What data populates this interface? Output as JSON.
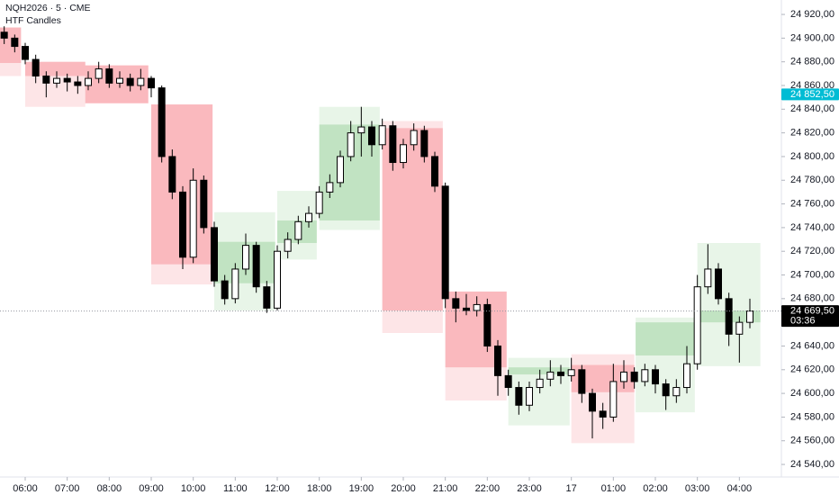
{
  "chart_data": {
    "type": "candlestick",
    "title": "NQH2026 · 5 · CME",
    "subtitle": "HTF Candles",
    "xlim": [
      -0.6,
      18.0
    ],
    "xticks": [
      {
        "value": 0,
        "label": "06:00"
      },
      {
        "value": 1,
        "label": "07:00"
      },
      {
        "value": 2,
        "label": "08:00"
      },
      {
        "value": 3,
        "label": "09:00"
      },
      {
        "value": 4,
        "label": "10:00"
      },
      {
        "value": 5,
        "label": "11:00"
      },
      {
        "value": 6,
        "label": "12:00"
      },
      {
        "value": 7,
        "label": "18:00"
      },
      {
        "value": 8,
        "label": "19:00"
      },
      {
        "value": 9,
        "label": "20:00"
      },
      {
        "value": 10,
        "label": "21:00"
      },
      {
        "value": 11,
        "label": "22:00"
      },
      {
        "value": 12,
        "label": "23:00"
      },
      {
        "value": 13,
        "label": "17"
      },
      {
        "value": 14,
        "label": "01:00"
      },
      {
        "value": 15,
        "label": "02:00"
      },
      {
        "value": 16,
        "label": "03:00"
      },
      {
        "value": 17,
        "label": "04:00"
      }
    ],
    "ylim": [
      24529.4,
      24932.2
    ],
    "yticks": [
      {
        "value": 24540,
        "label": "24 540,00"
      },
      {
        "value": 24560,
        "label": "24 560,00"
      },
      {
        "value": 24580,
        "label": "24 580,00"
      },
      {
        "value": 24600,
        "label": "24 600,00"
      },
      {
        "value": 24620,
        "label": "24 620,00"
      },
      {
        "value": 24640,
        "label": "24 640,00"
      },
      {
        "value": 24660,
        "label": "24 660,00"
      },
      {
        "value": 24680,
        "label": "24 680,00"
      },
      {
        "value": 24700,
        "label": "24 700,00"
      },
      {
        "value": 24720,
        "label": "24 720,00"
      },
      {
        "value": 24740,
        "label": "24 740,00"
      },
      {
        "value": 24760,
        "label": "24 760,00"
      },
      {
        "value": 24780,
        "label": "24 780,00"
      },
      {
        "value": 24800,
        "label": "24 800,00"
      },
      {
        "value": 24820,
        "label": "24 820,00"
      },
      {
        "value": 24840,
        "label": "24 840,00"
      },
      {
        "value": 24860,
        "label": "24 860,00"
      },
      {
        "value": 24880,
        "label": "24 880,00"
      },
      {
        "value": 24900,
        "label": "24 900,00"
      },
      {
        "value": 24920,
        "label": "24 920,00"
      }
    ],
    "up_color": "#ffffff",
    "down_color": "#000000",
    "wick_color": "#000000",
    "htf_up_color": "#4caf50",
    "htf_down_color": "#f23645",
    "htf_candles": [
      {
        "start": -0.6,
        "end": -0.1,
        "open": 24909,
        "high": 24909,
        "low": 24868,
        "close": 24879
      },
      {
        "start": 0,
        "end": 1.43,
        "open": 24880,
        "high": 24880,
        "low": 24842,
        "close": 24868
      },
      {
        "start": 1.43,
        "end": 2.93,
        "open": 24877,
        "high": 24877,
        "low": 24845,
        "close": 24845
      },
      {
        "start": 3.0,
        "end": 4.46,
        "open": 24844,
        "high": 24844,
        "low": 24692,
        "close": 24709
      },
      {
        "start": 4.5,
        "end": 5.95,
        "open": 24693,
        "high": 24753,
        "low": 24670,
        "close": 24728
      },
      {
        "start": 6.0,
        "end": 6.94,
        "open": 24727,
        "high": 24771,
        "low": 24713,
        "close": 24746
      },
      {
        "start": 7.0,
        "end": 8.44,
        "open": 24746,
        "high": 24842,
        "low": 24738,
        "close": 24827
      },
      {
        "start": 8.5,
        "end": 9.94,
        "open": 24824,
        "high": 24830,
        "low": 24651,
        "close": 24670
      },
      {
        "start": 10.0,
        "end": 11.46,
        "open": 24686,
        "high": 24686,
        "low": 24594,
        "close": 24622
      },
      {
        "start": 11.5,
        "end": 12.96,
        "open": 24616,
        "high": 24630,
        "low": 24573,
        "close": 24622
      },
      {
        "start": 13.0,
        "end": 14.5,
        "open": 24624,
        "high": 24633,
        "low": 24558,
        "close": 24601
      },
      {
        "start": 14.53,
        "end": 15.94,
        "open": 24632,
        "high": 24664,
        "low": 24584,
        "close": 24660
      },
      {
        "start": 16.0,
        "end": 17.5,
        "open": 24660,
        "high": 24727,
        "low": 24623,
        "close": 24670
      }
    ],
    "x": [
      -0.5,
      -0.25,
      0,
      0.25,
      0.5,
      0.75,
      1,
      1.25,
      1.5,
      1.75,
      2,
      2.25,
      2.5,
      2.75,
      3,
      3.25,
      3.5,
      3.75,
      4,
      4.25,
      4.5,
      4.75,
      5,
      5.25,
      5.5,
      5.75,
      6,
      6.25,
      6.5,
      6.75,
      7,
      7.25,
      7.5,
      7.75,
      8,
      8.25,
      8.5,
      8.75,
      9,
      9.25,
      9.5,
      9.75,
      10,
      10.25,
      10.5,
      10.75,
      11,
      11.25,
      11.5,
      11.75,
      12,
      12.25,
      12.5,
      12.75,
      13,
      13.25,
      13.5,
      13.75,
      14,
      14.25,
      14.5,
      14.75,
      15,
      15.25,
      15.5,
      15.75,
      16,
      16.25,
      16.5,
      16.75,
      17,
      17.25
    ],
    "candles": [
      [
        24905,
        24910,
        24895,
        24900
      ],
      [
        24900,
        24903,
        24888,
        24893
      ],
      [
        24893,
        24896,
        24878,
        24882
      ],
      [
        24882,
        24886,
        24862,
        24868
      ],
      [
        24868,
        24872,
        24850,
        24862
      ],
      [
        24862,
        24872,
        24858,
        24866
      ],
      [
        24866,
        24870,
        24855,
        24863
      ],
      [
        24863,
        24868,
        24853,
        24860
      ],
      [
        24860,
        24872,
        24856,
        24866
      ],
      [
        24866,
        24880,
        24862,
        24874
      ],
      [
        24874,
        24878,
        24858,
        24862
      ],
      [
        24862,
        24872,
        24858,
        24866
      ],
      [
        24866,
        24870,
        24855,
        24860
      ],
      [
        24860,
        24874,
        24856,
        24866
      ],
      [
        24866,
        24868,
        24850,
        24858
      ],
      [
        24858,
        24860,
        24795,
        24800
      ],
      [
        24800,
        24806,
        24764,
        24770
      ],
      [
        24770,
        24775,
        24705,
        24715
      ],
      [
        24715,
        24790,
        24710,
        24780
      ],
      [
        24780,
        24784,
        24735,
        24740
      ],
      [
        24740,
        24745,
        24690,
        24695
      ],
      [
        24695,
        24700,
        24675,
        24680
      ],
      [
        24680,
        24710,
        24676,
        24705
      ],
      [
        24705,
        24735,
        24700,
        24725
      ],
      [
        24725,
        24728,
        24685,
        24690
      ],
      [
        24690,
        24695,
        24668,
        24672
      ],
      [
        24672,
        24725,
        24670,
        24720
      ],
      [
        24720,
        24736,
        24714,
        24730
      ],
      [
        24730,
        24750,
        24726,
        24745
      ],
      [
        24745,
        24758,
        24740,
        24752
      ],
      [
        24752,
        24775,
        24748,
        24770
      ],
      [
        24770,
        24785,
        24765,
        24778
      ],
      [
        24778,
        24805,
        24774,
        24800
      ],
      [
        24800,
        24830,
        24796,
        24820
      ],
      [
        24820,
        24842,
        24800,
        24825
      ],
      [
        24825,
        24830,
        24800,
        24810
      ],
      [
        24810,
        24832,
        24806,
        24826
      ],
      [
        24826,
        24830,
        24788,
        24795
      ],
      [
        24795,
        24815,
        24790,
        24810
      ],
      [
        24810,
        24828,
        24805,
        24822
      ],
      [
        24822,
        24826,
        24795,
        24800
      ],
      [
        24800,
        24804,
        24770,
        24775
      ],
      [
        24775,
        24778,
        24672,
        24680
      ],
      [
        24680,
        24686,
        24660,
        24672
      ],
      [
        24672,
        24684,
        24666,
        24670
      ],
      [
        24670,
        24682,
        24665,
        24675
      ],
      [
        24675,
        24680,
        24635,
        24640
      ],
      [
        24640,
        24645,
        24598,
        24615
      ],
      [
        24615,
        24620,
        24598,
        24605
      ],
      [
        24605,
        24610,
        24582,
        24590
      ],
      [
        24590,
        24610,
        24585,
        24605
      ],
      [
        24605,
        24620,
        24600,
        24612
      ],
      [
        24612,
        24628,
        24606,
        24618
      ],
      [
        24618,
        24624,
        24608,
        24615
      ],
      [
        24615,
        24630,
        24610,
        24620
      ],
      [
        24620,
        24624,
        24592,
        24600
      ],
      [
        24600,
        24604,
        24562,
        24585
      ],
      [
        24585,
        24592,
        24570,
        24580
      ],
      [
        24580,
        24625,
        24576,
        24610
      ],
      [
        24610,
        24628,
        24604,
        24618
      ],
      [
        24618,
        24622,
        24604,
        24610
      ],
      [
        24610,
        24625,
        24606,
        24620
      ],
      [
        24620,
        24624,
        24600,
        24608
      ],
      [
        24608,
        24612,
        24586,
        24598
      ],
      [
        24598,
        24612,
        24592,
        24605
      ],
      [
        24605,
        24640,
        24600,
        24625
      ],
      [
        24625,
        24700,
        24620,
        24690
      ],
      [
        24690,
        24726,
        24684,
        24705
      ],
      [
        24705,
        24710,
        24675,
        24680
      ],
      [
        24680,
        24685,
        24640,
        24650
      ],
      [
        24650,
        24665,
        24626,
        24660
      ],
      [
        24660,
        24680,
        24655,
        24669.5
      ]
    ],
    "price_labels": [
      {
        "value": 24852.5,
        "label": "24 852,50",
        "color": "#00bcd4"
      },
      {
        "value": 24669.5,
        "label": "24 669,50",
        "sublabel": "03:36",
        "color": "#000000",
        "line": true
      }
    ]
  }
}
